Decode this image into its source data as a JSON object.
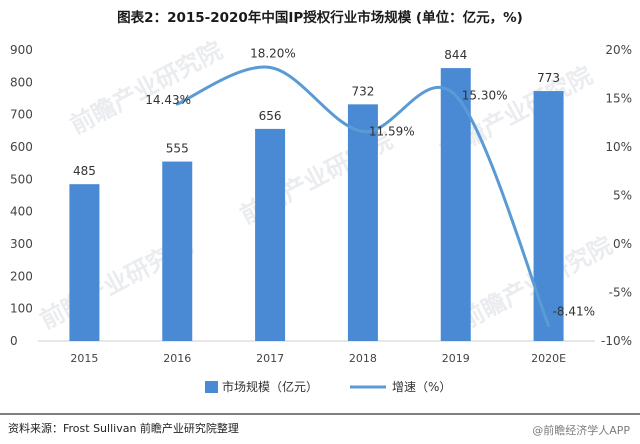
{
  "chart_data": {
    "type": "bar",
    "title": "图表2：2015-2020年中国IP授权行业市场规模 (单位：亿元，%)",
    "categories": [
      "2015",
      "2016",
      "2017",
      "2018",
      "2019",
      "2020E"
    ],
    "series": [
      {
        "name": "市场规模（亿元）",
        "type": "bar",
        "axis": "left",
        "values": [
          485,
          555,
          656,
          732,
          844,
          773
        ],
        "labels": [
          "485",
          "555",
          "656",
          "732",
          "844",
          "773"
        ],
        "color": "#4a8ad4"
      },
      {
        "name": "增速（%）",
        "type": "line",
        "axis": "right",
        "values": [
          null,
          14.43,
          18.2,
          11.59,
          15.3,
          -8.41
        ],
        "labels": [
          "",
          "14.43%",
          "18.20%",
          "11.59%",
          "15.30%",
          "-8.41%"
        ],
        "color": "#5b9bd5"
      }
    ],
    "y_left": {
      "min": 0,
      "max": 900,
      "ticks": [
        "0",
        "100",
        "200",
        "300",
        "400",
        "500",
        "600",
        "700",
        "800",
        "900"
      ]
    },
    "y_right": {
      "min": -10,
      "max": 20,
      "ticks": [
        "-10%",
        "-5%",
        "0%",
        "5%",
        "10%",
        "15%",
        "20%"
      ]
    },
    "grid": false,
    "legend_position": "bottom"
  },
  "source_text": "资料来源：Frost Sullivan 前瞻产业研究院整理",
  "watermark_text": "前瞻产业研究院",
  "footer_mark": "@前瞻经济学人APP"
}
